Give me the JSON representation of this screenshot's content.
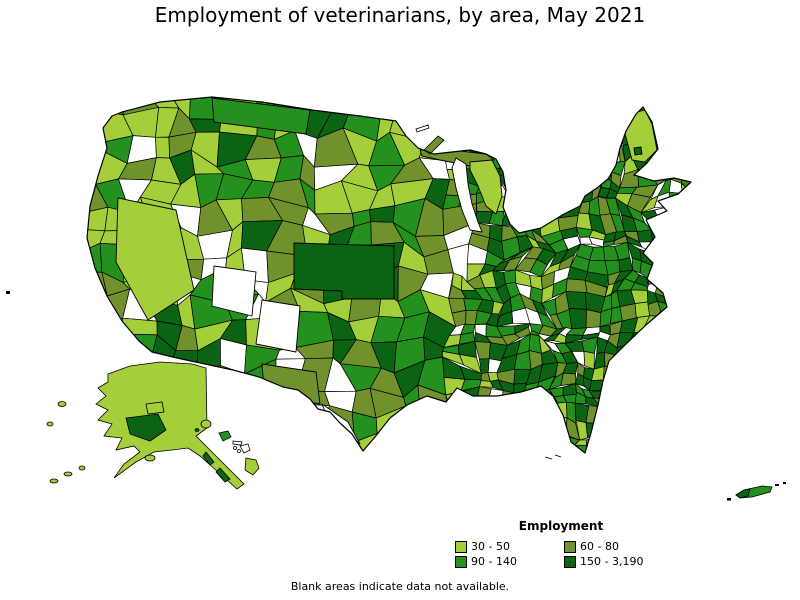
{
  "title": "Employment of veterinarians, by area, May 2021",
  "legend": {
    "heading": "Employment",
    "items": [
      {
        "label": "30 - 50",
        "color": "#A5CE3B"
      },
      {
        "label": "60 - 80",
        "color": "#71912C"
      },
      {
        "label": "90 - 140",
        "color": "#24911E"
      },
      {
        "label": "150 - 3,190",
        "color": "#0B6414"
      }
    ]
  },
  "footnote": "Blank areas indicate data not available.",
  "map": {
    "no_data_color": "#FFFFFF",
    "border_color": "#000000",
    "regions": [
      "Contiguous United States",
      "Alaska",
      "Hawaii",
      "Puerto Rico"
    ]
  }
}
